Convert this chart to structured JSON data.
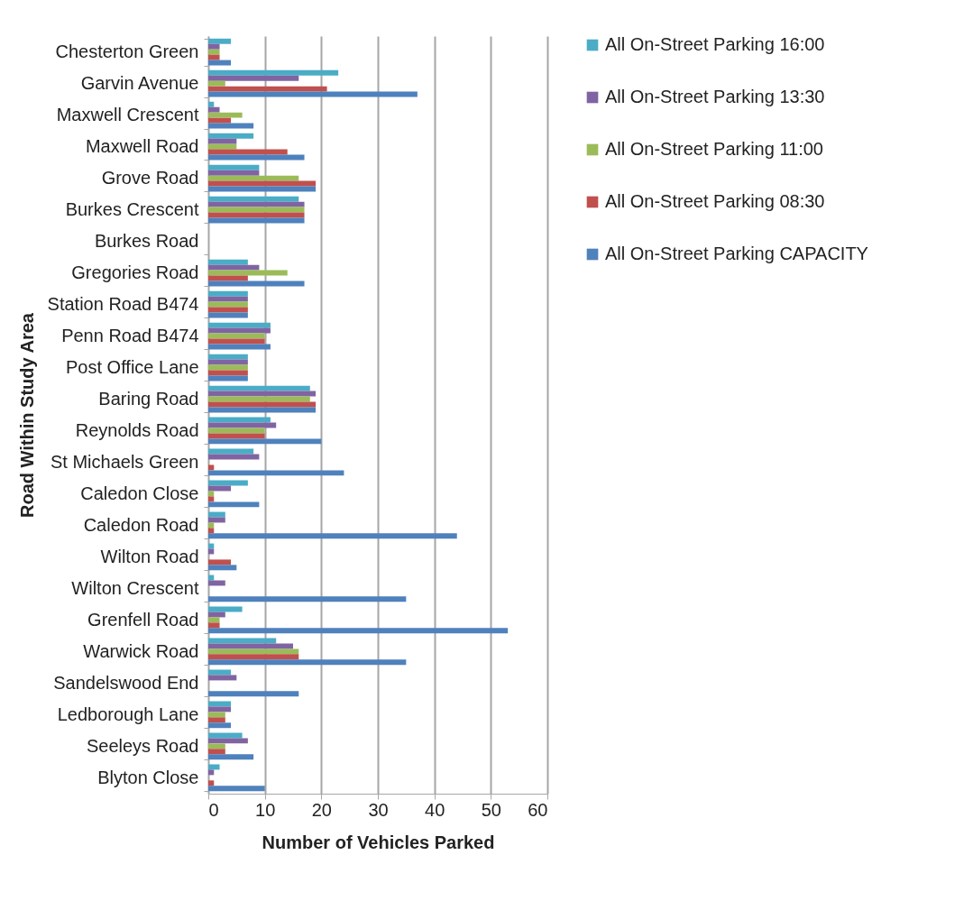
{
  "chart_data": {
    "type": "bar",
    "orientation": "horizontal",
    "xlabel": "Number of Vehicles Parked",
    "ylabel": "Road Within Study Area",
    "categories": [
      "Chesterton Green",
      "Garvin Avenue",
      "Maxwell Crescent",
      "Maxwell Road",
      "Grove Road",
      "Burkes Crescent",
      "Burkes Road",
      "Gregories Road",
      "Station Road B474",
      "Penn Road B474",
      "Post Office Lane",
      "Baring Road",
      "Reynolds Road",
      "St Michaels Green",
      "Caledon Close",
      "Caledon Road",
      "Wilton Road",
      "Wilton Crescent",
      "Grenfell Road",
      "Warwick Road",
      "Sandelswood End",
      "Ledborough Lane",
      "Seeleys Road",
      "Blyton Close"
    ],
    "series": [
      {
        "name": "All On-Street Parking 16:00",
        "color": "#4bacc6",
        "values": [
          4,
          23,
          1,
          8,
          9,
          16,
          0,
          7,
          7,
          11,
          7,
          18,
          11,
          8,
          7,
          3,
          1,
          1,
          6,
          12,
          4,
          4,
          6,
          2
        ]
      },
      {
        "name": "All On-Street Parking 13:30",
        "color": "#8064a2",
        "values": [
          2,
          16,
          2,
          5,
          9,
          17,
          0,
          9,
          7,
          11,
          7,
          19,
          12,
          9,
          4,
          3,
          1,
          3,
          3,
          15,
          5,
          4,
          7,
          1
        ]
      },
      {
        "name": "All On-Street Parking 11:00",
        "color": "#9bbb59",
        "values": [
          2,
          3,
          6,
          5,
          16,
          17,
          0,
          14,
          7,
          10,
          7,
          18,
          10,
          0,
          1,
          1,
          0,
          0,
          2,
          16,
          0,
          3,
          3,
          0
        ]
      },
      {
        "name": "All On-Street Parking 08:30",
        "color": "#c0504d",
        "values": [
          2,
          21,
          4,
          14,
          19,
          17,
          0,
          7,
          7,
          10,
          7,
          19,
          10,
          1,
          1,
          1,
          4,
          0,
          2,
          16,
          0,
          3,
          3,
          1
        ]
      },
      {
        "name": "All On-Street Parking CAPACITY",
        "color": "#4f81bd",
        "values": [
          4,
          37,
          8,
          17,
          19,
          17,
          0,
          17,
          7,
          11,
          7,
          19,
          20,
          24,
          9,
          44,
          5,
          35,
          53,
          35,
          16,
          4,
          8,
          10
        ]
      }
    ],
    "xlim": [
      0,
      60
    ],
    "xticks": [
      0,
      10,
      20,
      30,
      40,
      50,
      60
    ],
    "grid": "x",
    "legend": "right"
  }
}
